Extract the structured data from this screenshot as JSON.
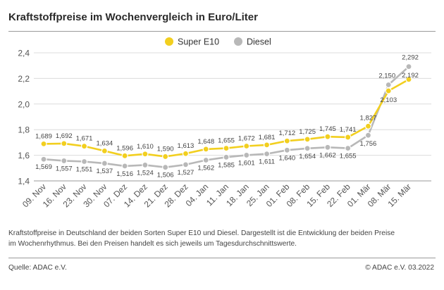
{
  "header": {
    "title": "Kraftstoffpreise im Wochenvergleich in Euro/Liter"
  },
  "colors": {
    "super": "#f2cf1f",
    "diesel": "#b8b8b8"
  },
  "chart_data": {
    "type": "line",
    "title": "Kraftstoffpreise im Wochenvergleich in Euro/Liter",
    "xlabel": "",
    "ylabel": "",
    "ylim": [
      1.4,
      2.4
    ],
    "yticks": [
      "1,4",
      "1,6",
      "1,8",
      "2,0",
      "2,2",
      "2,4"
    ],
    "grid": true,
    "legend_position": "top",
    "categories": [
      "09. Nov",
      "16. Nov",
      "23. Nov",
      "30. Nov",
      "07. Dez",
      "14. Dez",
      "21. Dez",
      "28. Dez",
      "04. Jan",
      "11. Jan",
      "18. Jan",
      "25. Jan",
      "01. Feb",
      "08. Feb",
      "15. Feb",
      "22. Feb",
      "01. Mär",
      "08. Mär",
      "15. Mär"
    ],
    "series": [
      {
        "name": "Super E10",
        "color": "#f2cf1f",
        "values": [
          1.689,
          1.692,
          1.671,
          1.634,
          1.596,
          1.61,
          1.59,
          1.613,
          1.648,
          1.655,
          1.672,
          1.681,
          1.712,
          1.725,
          1.745,
          1.741,
          1.827,
          2.103,
          2.192
        ],
        "labels": [
          "1,689",
          "1,692",
          "1,671",
          "1,634",
          "1,596",
          "1,610",
          "1,590",
          "1,613",
          "1,648",
          "1,655",
          "1,672",
          "1,681",
          "1,712",
          "1,725",
          "1,745",
          "1,741",
          "1,827",
          "2,103",
          "2,192"
        ]
      },
      {
        "name": "Diesel",
        "color": "#b8b8b8",
        "values": [
          1.569,
          1.557,
          1.551,
          1.537,
          1.516,
          1.524,
          1.506,
          1.527,
          1.562,
          1.585,
          1.601,
          1.611,
          1.64,
          1.654,
          1.662,
          1.655,
          1.756,
          2.15,
          2.292
        ],
        "labels": [
          "1,569",
          "1,557",
          "1,551",
          "1,537",
          "1,516",
          "1,524",
          "1,506",
          "1,527",
          "1,562",
          "1,585",
          "1,601",
          "1,611",
          "1,640",
          "1,654",
          "1,662",
          "1,655",
          "1,756",
          "2,150",
          "2,292"
        ]
      }
    ]
  },
  "description": "Kraftstoffpreise in Deutschland der beiden Sorten Super E10 und Diesel. Dargestellt ist die Entwicklung der beiden Preise im Wochenrhythmus. Bei den Preisen handelt es sich jeweils um Tagesdurchschnittswerte.",
  "footer": {
    "source": "Quelle: ADAC e.V.",
    "copyright": "© ADAC e.V. 03.2022"
  }
}
